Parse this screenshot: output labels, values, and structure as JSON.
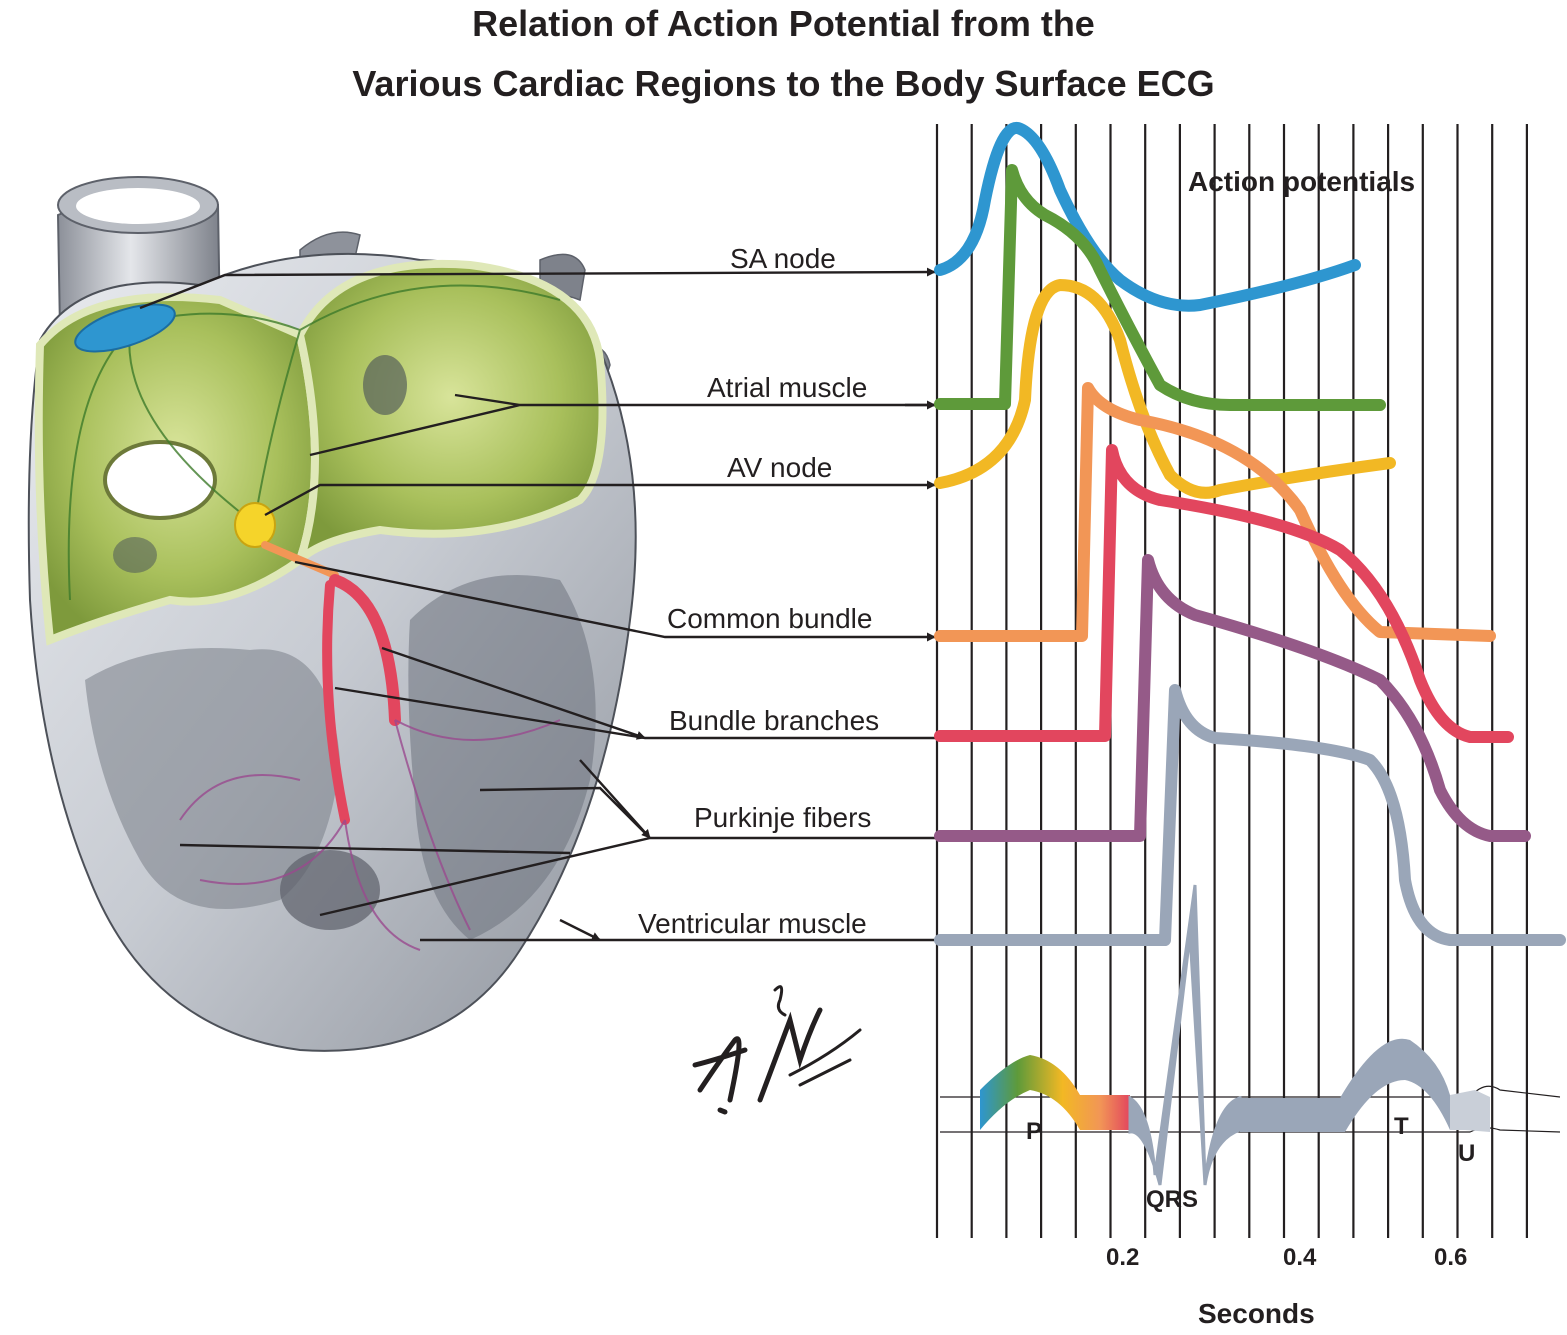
{
  "title": {
    "line1": "Relation of Action Potential from the",
    "line2": "Various Cardiac Regions to the Body Surface ECG"
  },
  "section_label": "Action potentials",
  "regions": [
    {
      "label": "SA node",
      "color": "#2e96d0"
    },
    {
      "label": "Atrial muscle",
      "color": "#5e9a3a"
    },
    {
      "label": "AV node",
      "color": "#f2b824"
    },
    {
      "label": "Common bundle",
      "color": "#f29656"
    },
    {
      "label": "Bundle branches",
      "color": "#e2465e"
    },
    {
      "label": "Purkinje fibers",
      "color": "#955a88"
    },
    {
      "label": "Ventricular muscle",
      "color": "#9aa6b8"
    }
  ],
  "ecg_waves": {
    "p": "P",
    "qrs": "QRS",
    "t": "T",
    "u": "U"
  },
  "axis": {
    "ticks": [
      {
        "value": 0.2,
        "label": "0.2"
      },
      {
        "value": 0.4,
        "label": "0.4"
      },
      {
        "value": 0.6,
        "label": "0.6"
      }
    ],
    "label": "Seconds"
  },
  "signature": "F. Netter M.D.",
  "colors": {
    "ink": "#231f20",
    "heart_green": "#a7bf58",
    "heart_gray": "#c9cdd4"
  }
}
